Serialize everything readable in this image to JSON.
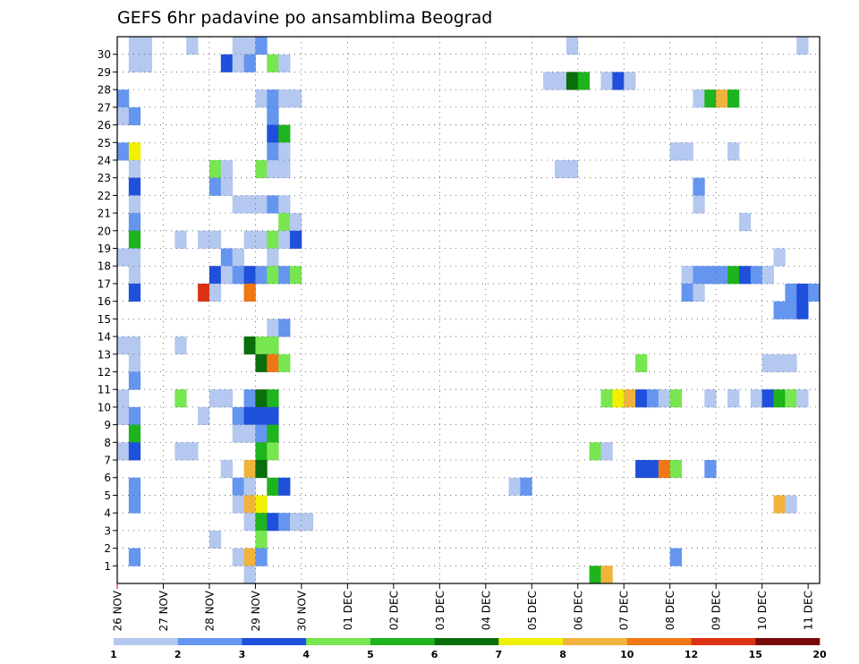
{
  "chart_data": {
    "type": "heatmap",
    "title": "GEFS 6hr padavine po ansamblima Beograd",
    "y_ticks": [
      "1",
      "2",
      "3",
      "4",
      "5",
      "6",
      "7",
      "8",
      "9",
      "10",
      "11",
      "12",
      "13",
      "14",
      "15",
      "16",
      "17",
      "18",
      "19",
      "20",
      "21",
      "22",
      "23",
      "24",
      "25",
      "26",
      "27",
      "28",
      "29",
      "30"
    ],
    "x_ticks": [
      "26 NOV",
      "27 NOV",
      "28 NOV",
      "29 NOV",
      "30 NOV",
      "01 DEC",
      "02 DEC",
      "03 DEC",
      "04 DEC",
      "05 DEC",
      "06 DEC",
      "07 DEC",
      "08 DEC",
      "09 DEC",
      "10 DEC",
      "11 DEC"
    ],
    "colorbar": {
      "levels": [
        "1",
        "2",
        "3",
        "4",
        "5",
        "6",
        "7",
        "8",
        "10",
        "12",
        "15",
        "20"
      ],
      "colors": [
        "#b4c8f0",
        "#6496f0",
        "#1e50dc",
        "#78e650",
        "#1eb41e",
        "#0a6e0a",
        "#f0f000",
        "#f0b43c",
        "#f07814",
        "#dc3214",
        "#780a0a"
      ]
    },
    "cells": [
      [
        30,
        1,
        1
      ],
      [
        30,
        2,
        1
      ],
      [
        30,
        6,
        1
      ],
      [
        30,
        10,
        1
      ],
      [
        30,
        11,
        1
      ],
      [
        30,
        12,
        2
      ],
      [
        30,
        39,
        1
      ],
      [
        30,
        59,
        1
      ],
      [
        29,
        1,
        1
      ],
      [
        29,
        2,
        1
      ],
      [
        29,
        9,
        3
      ],
      [
        29,
        10,
        1
      ],
      [
        29,
        11,
        2
      ],
      [
        29,
        13,
        4
      ],
      [
        29,
        14,
        1
      ],
      [
        28,
        37,
        1
      ],
      [
        28,
        38,
        1
      ],
      [
        28,
        39,
        6
      ],
      [
        28,
        40,
        5
      ],
      [
        28,
        42,
        1
      ],
      [
        28,
        43,
        3
      ],
      [
        28,
        44,
        1
      ],
      [
        27,
        0,
        2
      ],
      [
        27,
        12,
        1
      ],
      [
        27,
        13,
        2
      ],
      [
        27,
        14,
        1
      ],
      [
        27,
        15,
        1
      ],
      [
        27,
        50,
        1
      ],
      [
        27,
        51,
        5
      ],
      [
        27,
        52,
        8
      ],
      [
        27,
        53,
        5
      ],
      [
        26,
        0,
        1
      ],
      [
        26,
        1,
        2
      ],
      [
        26,
        13,
        2
      ],
      [
        25,
        13,
        3
      ],
      [
        25,
        14,
        5
      ],
      [
        24,
        0,
        2
      ],
      [
        24,
        1,
        7
      ],
      [
        24,
        13,
        2
      ],
      [
        24,
        14,
        1
      ],
      [
        24,
        48,
        1
      ],
      [
        24,
        49,
        1
      ],
      [
        24,
        53,
        1
      ],
      [
        23,
        1,
        1
      ],
      [
        23,
        8,
        4
      ],
      [
        23,
        9,
        1
      ],
      [
        23,
        12,
        4
      ],
      [
        23,
        13,
        1
      ],
      [
        23,
        14,
        1
      ],
      [
        23,
        38,
        1
      ],
      [
        23,
        39,
        1
      ],
      [
        22,
        1,
        3
      ],
      [
        22,
        8,
        2
      ],
      [
        22,
        9,
        1
      ],
      [
        22,
        50,
        2
      ],
      [
        21,
        1,
        1
      ],
      [
        21,
        10,
        1
      ],
      [
        21,
        11,
        1
      ],
      [
        21,
        12,
        1
      ],
      [
        21,
        13,
        2
      ],
      [
        21,
        14,
        1
      ],
      [
        21,
        50,
        1
      ],
      [
        20,
        1,
        2
      ],
      [
        20,
        14,
        4
      ],
      [
        20,
        15,
        1
      ],
      [
        20,
        54,
        1
      ],
      [
        19,
        1,
        5
      ],
      [
        19,
        5,
        1
      ],
      [
        19,
        7,
        1
      ],
      [
        19,
        8,
        1
      ],
      [
        19,
        11,
        1
      ],
      [
        19,
        12,
        1
      ],
      [
        19,
        13,
        4
      ],
      [
        19,
        14,
        1
      ],
      [
        19,
        15,
        3
      ],
      [
        18,
        0,
        1
      ],
      [
        18,
        1,
        1
      ],
      [
        18,
        9,
        2
      ],
      [
        18,
        10,
        1
      ],
      [
        18,
        13,
        1
      ],
      [
        18,
        57,
        1
      ],
      [
        17,
        1,
        1
      ],
      [
        17,
        8,
        3
      ],
      [
        17,
        9,
        1
      ],
      [
        17,
        10,
        2
      ],
      [
        17,
        11,
        3
      ],
      [
        17,
        12,
        2
      ],
      [
        17,
        13,
        4
      ],
      [
        17,
        14,
        2
      ],
      [
        17,
        15,
        4
      ],
      [
        17,
        49,
        1
      ],
      [
        17,
        50,
        2
      ],
      [
        17,
        51,
        2
      ],
      [
        17,
        52,
        2
      ],
      [
        17,
        53,
        5
      ],
      [
        17,
        54,
        3
      ],
      [
        17,
        55,
        2
      ],
      [
        17,
        56,
        1
      ],
      [
        16,
        1,
        3
      ],
      [
        16,
        7,
        10
      ],
      [
        16,
        8,
        1
      ],
      [
        16,
        11,
        9
      ],
      [
        16,
        49,
        2
      ],
      [
        16,
        50,
        1
      ],
      [
        16,
        58,
        2
      ],
      [
        16,
        59,
        3
      ],
      [
        16,
        60,
        2
      ],
      [
        15,
        57,
        2
      ],
      [
        15,
        58,
        2
      ],
      [
        15,
        59,
        3
      ],
      [
        14,
        13,
        1
      ],
      [
        14,
        14,
        2
      ],
      [
        13,
        0,
        1
      ],
      [
        13,
        1,
        1
      ],
      [
        13,
        5,
        1
      ],
      [
        13,
        11,
        6
      ],
      [
        13,
        12,
        4
      ],
      [
        13,
        13,
        4
      ],
      [
        12,
        1,
        1
      ],
      [
        12,
        12,
        6
      ],
      [
        12,
        13,
        9
      ],
      [
        12,
        14,
        4
      ],
      [
        12,
        45,
        4
      ],
      [
        12,
        56,
        1
      ],
      [
        12,
        57,
        1
      ],
      [
        12,
        58,
        1
      ],
      [
        11,
        1,
        2
      ],
      [
        10,
        0,
        1
      ],
      [
        10,
        5,
        4
      ],
      [
        10,
        8,
        1
      ],
      [
        10,
        9,
        1
      ],
      [
        10,
        11,
        2
      ],
      [
        10,
        12,
        6
      ],
      [
        10,
        13,
        5
      ],
      [
        10,
        42,
        4
      ],
      [
        10,
        43,
        7
      ],
      [
        10,
        44,
        8
      ],
      [
        10,
        45,
        3
      ],
      [
        10,
        46,
        2
      ],
      [
        10,
        47,
        1
      ],
      [
        10,
        48,
        4
      ],
      [
        10,
        51,
        1
      ],
      [
        10,
        53,
        1
      ],
      [
        10,
        55,
        1
      ],
      [
        10,
        56,
        3
      ],
      [
        10,
        57,
        5
      ],
      [
        10,
        58,
        4
      ],
      [
        10,
        59,
        1
      ],
      [
        9,
        0,
        1
      ],
      [
        9,
        1,
        2
      ],
      [
        9,
        7,
        1
      ],
      [
        9,
        10,
        2
      ],
      [
        9,
        11,
        3
      ],
      [
        9,
        12,
        3
      ],
      [
        9,
        13,
        3
      ],
      [
        8,
        1,
        5
      ],
      [
        8,
        10,
        1
      ],
      [
        8,
        11,
        1
      ],
      [
        8,
        12,
        2
      ],
      [
        8,
        13,
        5
      ],
      [
        7,
        0,
        1
      ],
      [
        7,
        1,
        3
      ],
      [
        7,
        5,
        1
      ],
      [
        7,
        6,
        1
      ],
      [
        7,
        12,
        5
      ],
      [
        7,
        13,
        4
      ],
      [
        7,
        41,
        4
      ],
      [
        7,
        42,
        1
      ],
      [
        6,
        9,
        1
      ],
      [
        6,
        11,
        8
      ],
      [
        6,
        12,
        6
      ],
      [
        6,
        45,
        3
      ],
      [
        6,
        46,
        3
      ],
      [
        6,
        47,
        9
      ],
      [
        6,
        48,
        4
      ],
      [
        6,
        51,
        2
      ],
      [
        5,
        1,
        2
      ],
      [
        5,
        10,
        2
      ],
      [
        5,
        11,
        1
      ],
      [
        5,
        13,
        5
      ],
      [
        5,
        14,
        3
      ],
      [
        5,
        34,
        1
      ],
      [
        5,
        35,
        2
      ],
      [
        4,
        1,
        2
      ],
      [
        4,
        10,
        1
      ],
      [
        4,
        11,
        8
      ],
      [
        4,
        12,
        7
      ],
      [
        4,
        57,
        8
      ],
      [
        4,
        58,
        1
      ],
      [
        3,
        11,
        1
      ],
      [
        3,
        12,
        5
      ],
      [
        3,
        13,
        3
      ],
      [
        3,
        14,
        2
      ],
      [
        3,
        15,
        1
      ],
      [
        3,
        16,
        1
      ],
      [
        2,
        8,
        1
      ],
      [
        2,
        12,
        4
      ],
      [
        1,
        1,
        2
      ],
      [
        1,
        10,
        1
      ],
      [
        1,
        11,
        8
      ],
      [
        1,
        12,
        2
      ],
      [
        1,
        48,
        2
      ],
      [
        0,
        11,
        1
      ],
      [
        0,
        41,
        5
      ],
      [
        0,
        42,
        8
      ]
    ]
  }
}
